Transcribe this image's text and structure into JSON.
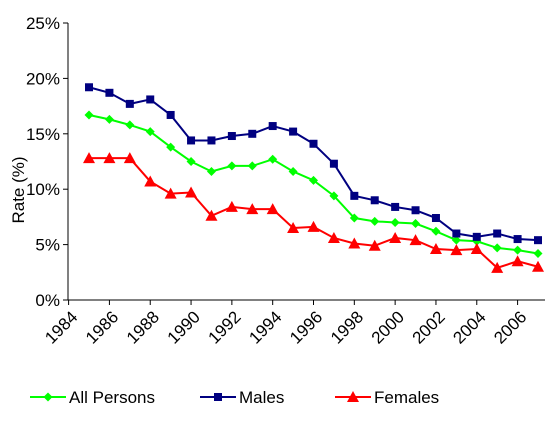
{
  "chart_data": {
    "type": "line",
    "y_label": "Rate (%)",
    "x": [
      1985,
      1986,
      1987,
      1988,
      1989,
      1990,
      1991,
      1992,
      1993,
      1994,
      1995,
      1996,
      1997,
      1998,
      1999,
      2000,
      2001,
      2002,
      2003,
      2004,
      2005,
      2006,
      2007
    ],
    "xlim": [
      1984,
      2007
    ],
    "xticks": [
      1984,
      1986,
      1988,
      1990,
      1992,
      1994,
      1996,
      1998,
      2000,
      2002,
      2004,
      2006
    ],
    "ylim": [
      0,
      25
    ],
    "yticks": [
      {
        "value": 0,
        "label": "0%"
      },
      {
        "value": 5,
        "label": "5%"
      },
      {
        "value": 10,
        "label": "10%"
      },
      {
        "value": 15,
        "label": "15%"
      },
      {
        "value": 20,
        "label": "20%"
      },
      {
        "value": 25,
        "label": "25%"
      }
    ],
    "legend": "bottom",
    "series": [
      {
        "name": "All Persons",
        "color": "#00ff00",
        "marker": "diamond",
        "values": [
          16.7,
          16.3,
          15.8,
          15.2,
          13.8,
          12.5,
          11.6,
          12.1,
          12.1,
          12.7,
          11.6,
          10.8,
          9.4,
          7.4,
          7.1,
          7.0,
          6.9,
          6.2,
          5.4,
          5.3,
          4.7,
          4.5,
          4.2
        ]
      },
      {
        "name": "Males",
        "color": "#000080",
        "marker": "square",
        "values": [
          19.2,
          18.7,
          17.7,
          18.1,
          16.7,
          14.4,
          14.4,
          14.8,
          15.0,
          15.7,
          15.2,
          14.1,
          12.3,
          9.4,
          9.0,
          8.4,
          8.1,
          7.4,
          6.0,
          5.7,
          6.0,
          5.5,
          5.4
        ]
      },
      {
        "name": "Females",
        "color": "#ff0000",
        "marker": "triangle",
        "values": [
          12.8,
          12.8,
          12.8,
          10.7,
          9.6,
          9.7,
          7.6,
          8.4,
          8.2,
          8.2,
          6.5,
          6.6,
          5.6,
          5.1,
          4.9,
          5.6,
          5.4,
          4.6,
          4.5,
          4.6,
          2.9,
          3.5,
          3.0
        ]
      }
    ]
  }
}
